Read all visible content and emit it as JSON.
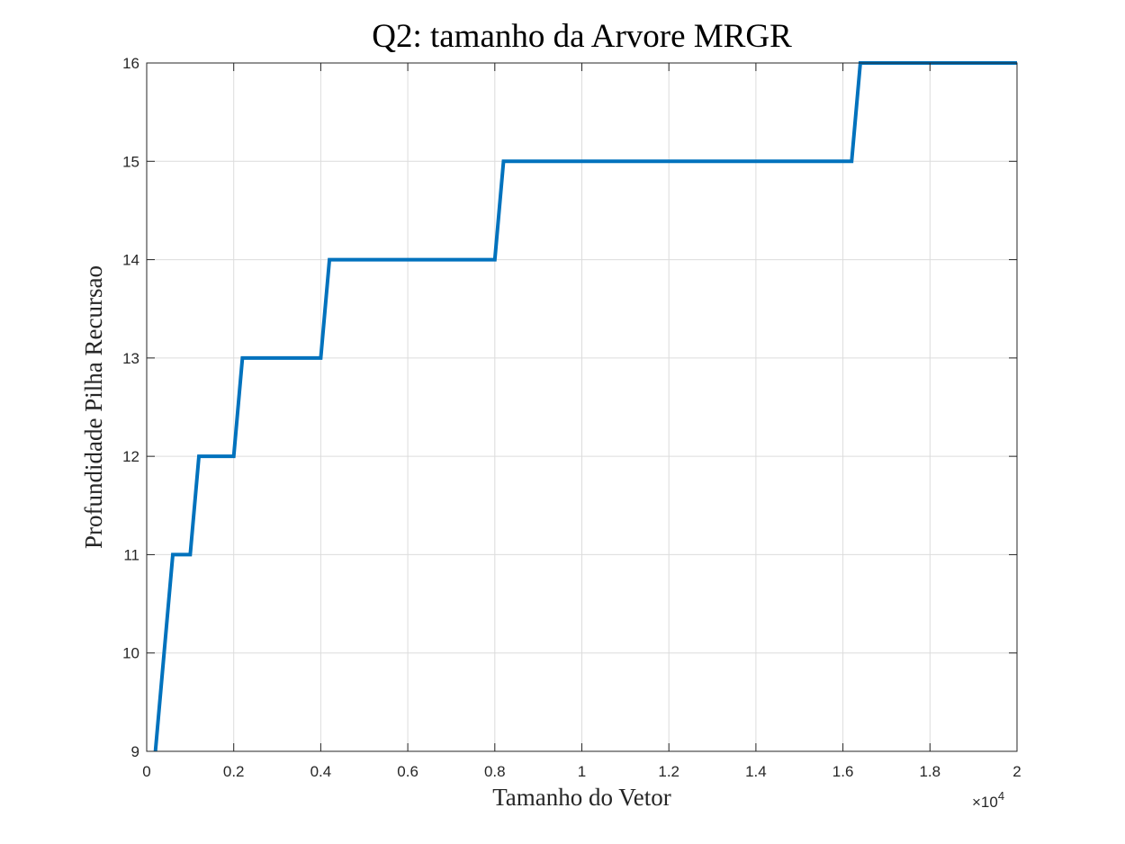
{
  "chart_data": {
    "type": "line",
    "title": "Q2: tamanho da Arvore MRGR",
    "xlabel": "Tamanho do Vetor",
    "ylabel": "Profundidade Pilha Recursao",
    "x_multiplier": {
      "base": "×10",
      "exponent": "4"
    },
    "xlim": [
      0,
      20000
    ],
    "ylim": [
      9,
      16
    ],
    "xticks": [
      0,
      2000,
      4000,
      6000,
      8000,
      10000,
      12000,
      14000,
      16000,
      18000,
      20000
    ],
    "xtick_labels": [
      "0",
      "0.2",
      "0.4",
      "0.6",
      "0.8",
      "1",
      "1.2",
      "1.4",
      "1.6",
      "1.8",
      "2"
    ],
    "yticks": [
      9,
      10,
      11,
      12,
      13,
      14,
      15,
      16
    ],
    "ytick_labels": [
      "9",
      "10",
      "11",
      "12",
      "13",
      "14",
      "15",
      "16"
    ],
    "grid": true,
    "line_color": "#0072BD",
    "series": [
      {
        "x": [
          200,
          600,
          1000,
          1200,
          2000,
          2200,
          4000,
          4200,
          8000,
          8200,
          16200,
          16400,
          20000
        ],
        "y": [
          9,
          11,
          11,
          12,
          12,
          13,
          13,
          14,
          14,
          15,
          15,
          16,
          16
        ]
      }
    ]
  }
}
